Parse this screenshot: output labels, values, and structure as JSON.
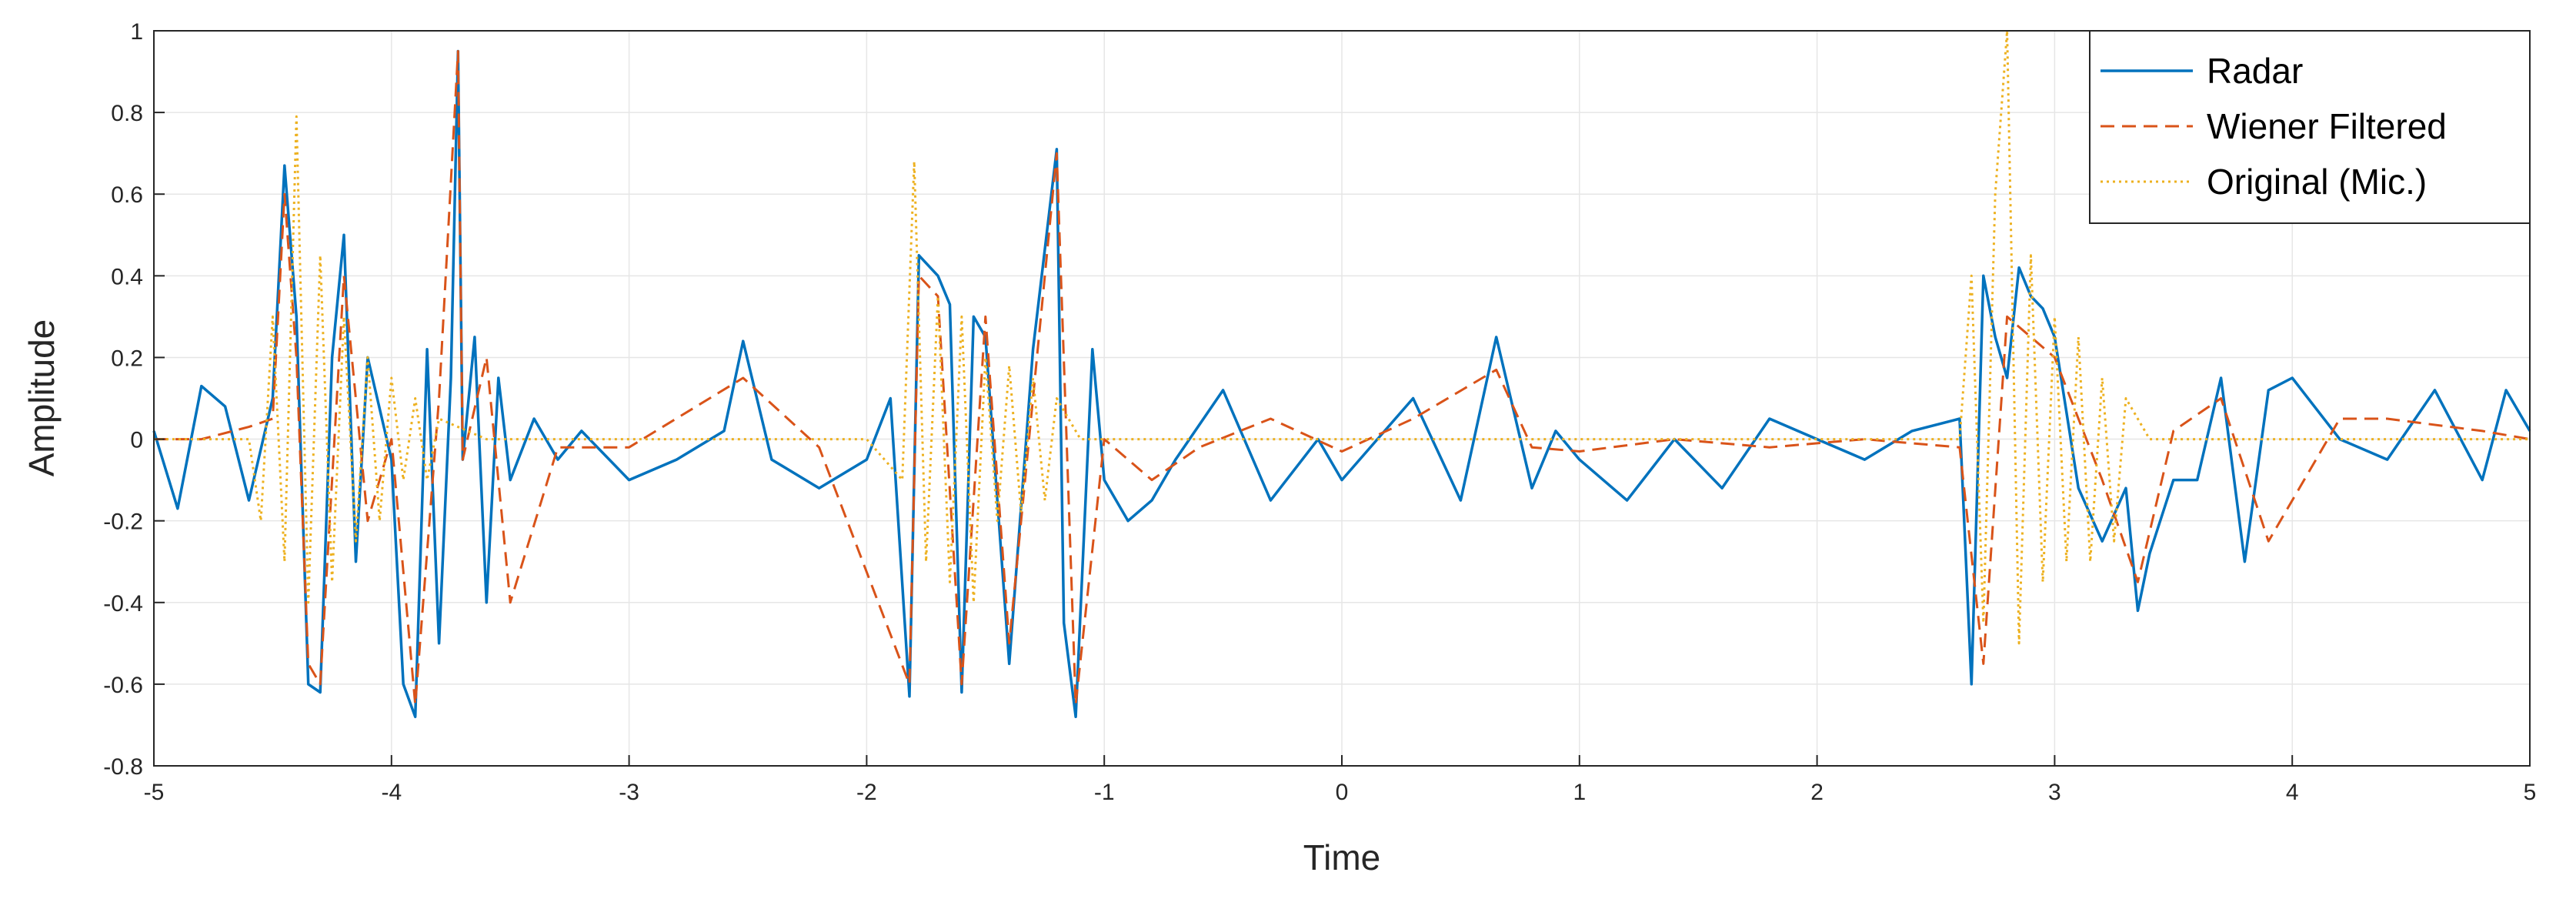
{
  "chart_data": {
    "type": "line",
    "xlabel": "Time",
    "ylabel": "Amplitude",
    "xlim": [
      -5,
      5
    ],
    "ylim": [
      -0.8,
      1
    ],
    "xticks": [
      -5,
      -4,
      -3,
      -2,
      -1,
      0,
      1,
      2,
      3,
      4,
      5
    ],
    "yticks": [
      -0.8,
      -0.6,
      -0.4,
      -0.2,
      0,
      0.2,
      0.4,
      0.6,
      0.8,
      1
    ],
    "grid": true,
    "legend_position": "top-right",
    "series": [
      {
        "name": "Radar",
        "color": "#0072BD",
        "style": "solid",
        "x": [
          -5.0,
          -4.9,
          -4.8,
          -4.7,
          -4.6,
          -4.5,
          -4.45,
          -4.4,
          -4.35,
          -4.3,
          -4.25,
          -4.2,
          -4.15,
          -4.1,
          -4.0,
          -3.95,
          -3.9,
          -3.85,
          -3.8,
          -3.75,
          -3.72,
          -3.7,
          -3.65,
          -3.6,
          -3.55,
          -3.5,
          -3.4,
          -3.3,
          -3.2,
          -3.0,
          -2.8,
          -2.6,
          -2.52,
          -2.4,
          -2.2,
          -2.0,
          -1.9,
          -1.82,
          -1.78,
          -1.7,
          -1.65,
          -1.6,
          -1.55,
          -1.5,
          -1.4,
          -1.3,
          -1.2,
          -1.17,
          -1.12,
          -1.05,
          -1.0,
          -0.9,
          -0.8,
          -0.7,
          -0.5,
          -0.3,
          -0.1,
          0.0,
          0.3,
          0.5,
          0.65,
          0.8,
          0.9,
          1.0,
          1.2,
          1.4,
          1.6,
          1.8,
          2.0,
          2.2,
          2.4,
          2.6,
          2.65,
          2.7,
          2.75,
          2.8,
          2.85,
          2.9,
          2.95,
          3.0,
          3.1,
          3.2,
          3.3,
          3.35,
          3.4,
          3.5,
          3.6,
          3.7,
          3.8,
          3.9,
          4.0,
          4.2,
          4.4,
          4.6,
          4.8,
          4.9,
          5.0
        ],
        "y": [
          0.02,
          -0.17,
          0.13,
          0.08,
          -0.15,
          0.1,
          0.67,
          0.3,
          -0.6,
          -0.62,
          0.2,
          0.5,
          -0.3,
          0.2,
          -0.05,
          -0.6,
          -0.68,
          0.22,
          -0.5,
          0.15,
          0.95,
          -0.05,
          0.25,
          -0.4,
          0.15,
          -0.1,
          0.05,
          -0.05,
          0.02,
          -0.1,
          -0.05,
          0.02,
          0.24,
          -0.05,
          -0.12,
          -0.05,
          0.1,
          -0.63,
          0.45,
          0.4,
          0.33,
          -0.62,
          0.3,
          0.25,
          -0.55,
          0.22,
          0.71,
          -0.45,
          -0.68,
          0.22,
          -0.1,
          -0.2,
          -0.15,
          -0.05,
          0.12,
          -0.15,
          0.0,
          -0.1,
          0.1,
          -0.15,
          0.25,
          -0.12,
          0.02,
          -0.05,
          -0.15,
          0.0,
          -0.12,
          0.05,
          0.0,
          -0.05,
          0.02,
          0.05,
          -0.6,
          0.4,
          0.25,
          0.15,
          0.42,
          0.35,
          0.32,
          0.25,
          -0.12,
          -0.25,
          -0.12,
          -0.42,
          -0.28,
          -0.1,
          -0.1,
          0.15,
          -0.3,
          0.12,
          0.15,
          0.0,
          -0.05,
          0.12,
          -0.1,
          0.12,
          0.02
        ]
      },
      {
        "name": "Wiener Filtered",
        "color": "#D95319",
        "style": "dashed",
        "x": [
          -5.0,
          -4.8,
          -4.6,
          -4.5,
          -4.45,
          -4.4,
          -4.35,
          -4.3,
          -4.2,
          -4.1,
          -4.0,
          -3.9,
          -3.8,
          -3.72,
          -3.7,
          -3.6,
          -3.5,
          -3.3,
          -3.0,
          -2.52,
          -2.2,
          -1.82,
          -1.78,
          -1.7,
          -1.6,
          -1.5,
          -1.4,
          -1.2,
          -1.12,
          -1.0,
          -0.8,
          -0.6,
          -0.3,
          0.0,
          0.3,
          0.65,
          0.8,
          1.0,
          1.4,
          1.8,
          2.2,
          2.6,
          2.7,
          2.8,
          2.9,
          3.0,
          3.2,
          3.35,
          3.5,
          3.7,
          3.9,
          4.2,
          4.4,
          4.8,
          5.0
        ],
        "y": [
          0.0,
          0.0,
          0.03,
          0.05,
          0.6,
          0.2,
          -0.55,
          -0.6,
          0.4,
          -0.2,
          0.0,
          -0.65,
          0.1,
          0.95,
          -0.05,
          0.2,
          -0.4,
          -0.02,
          -0.02,
          0.15,
          -0.02,
          -0.6,
          0.4,
          0.35,
          -0.6,
          0.3,
          -0.5,
          0.7,
          -0.65,
          0.0,
          -0.1,
          -0.02,
          0.05,
          -0.03,
          0.05,
          0.17,
          -0.02,
          -0.03,
          0.0,
          -0.02,
          0.0,
          -0.02,
          -0.55,
          0.3,
          0.25,
          0.2,
          -0.1,
          -0.35,
          0.02,
          0.1,
          -0.25,
          0.05,
          0.05,
          0.02,
          0.0
        ]
      },
      {
        "name": "Original (Mic.)",
        "color": "#EDB120",
        "style": "dotted",
        "x": [
          -5.0,
          -4.6,
          -4.55,
          -4.5,
          -4.45,
          -4.4,
          -4.35,
          -4.3,
          -4.25,
          -4.2,
          -4.15,
          -4.1,
          -4.05,
          -4.0,
          -3.95,
          -3.9,
          -3.85,
          -3.8,
          -3.6,
          -3.0,
          -2.0,
          -1.85,
          -1.8,
          -1.75,
          -1.7,
          -1.65,
          -1.6,
          -1.55,
          -1.5,
          -1.45,
          -1.4,
          -1.35,
          -1.3,
          -1.25,
          -1.2,
          -1.1,
          -0.5,
          0.0,
          1.0,
          2.0,
          2.6,
          2.65,
          2.7,
          2.75,
          2.8,
          2.85,
          2.9,
          2.95,
          3.0,
          3.05,
          3.1,
          3.15,
          3.2,
          3.25,
          3.3,
          3.4,
          4.0,
          5.0
        ],
        "y": [
          0.0,
          0.0,
          -0.2,
          0.3,
          -0.3,
          0.79,
          -0.4,
          0.45,
          -0.35,
          0.3,
          -0.25,
          0.2,
          -0.2,
          0.15,
          -0.1,
          0.1,
          -0.1,
          0.05,
          0.0,
          0.0,
          0.0,
          -0.1,
          0.68,
          -0.3,
          0.35,
          -0.35,
          0.3,
          -0.4,
          0.2,
          -0.2,
          0.18,
          -0.18,
          0.15,
          -0.15,
          0.1,
          0.0,
          0.0,
          0.0,
          0.0,
          0.0,
          0.0,
          0.4,
          -0.45,
          0.6,
          1.0,
          -0.5,
          0.45,
          -0.35,
          0.3,
          -0.3,
          0.25,
          -0.3,
          0.15,
          -0.25,
          0.1,
          0.0,
          0.0,
          0.0
        ]
      }
    ]
  }
}
